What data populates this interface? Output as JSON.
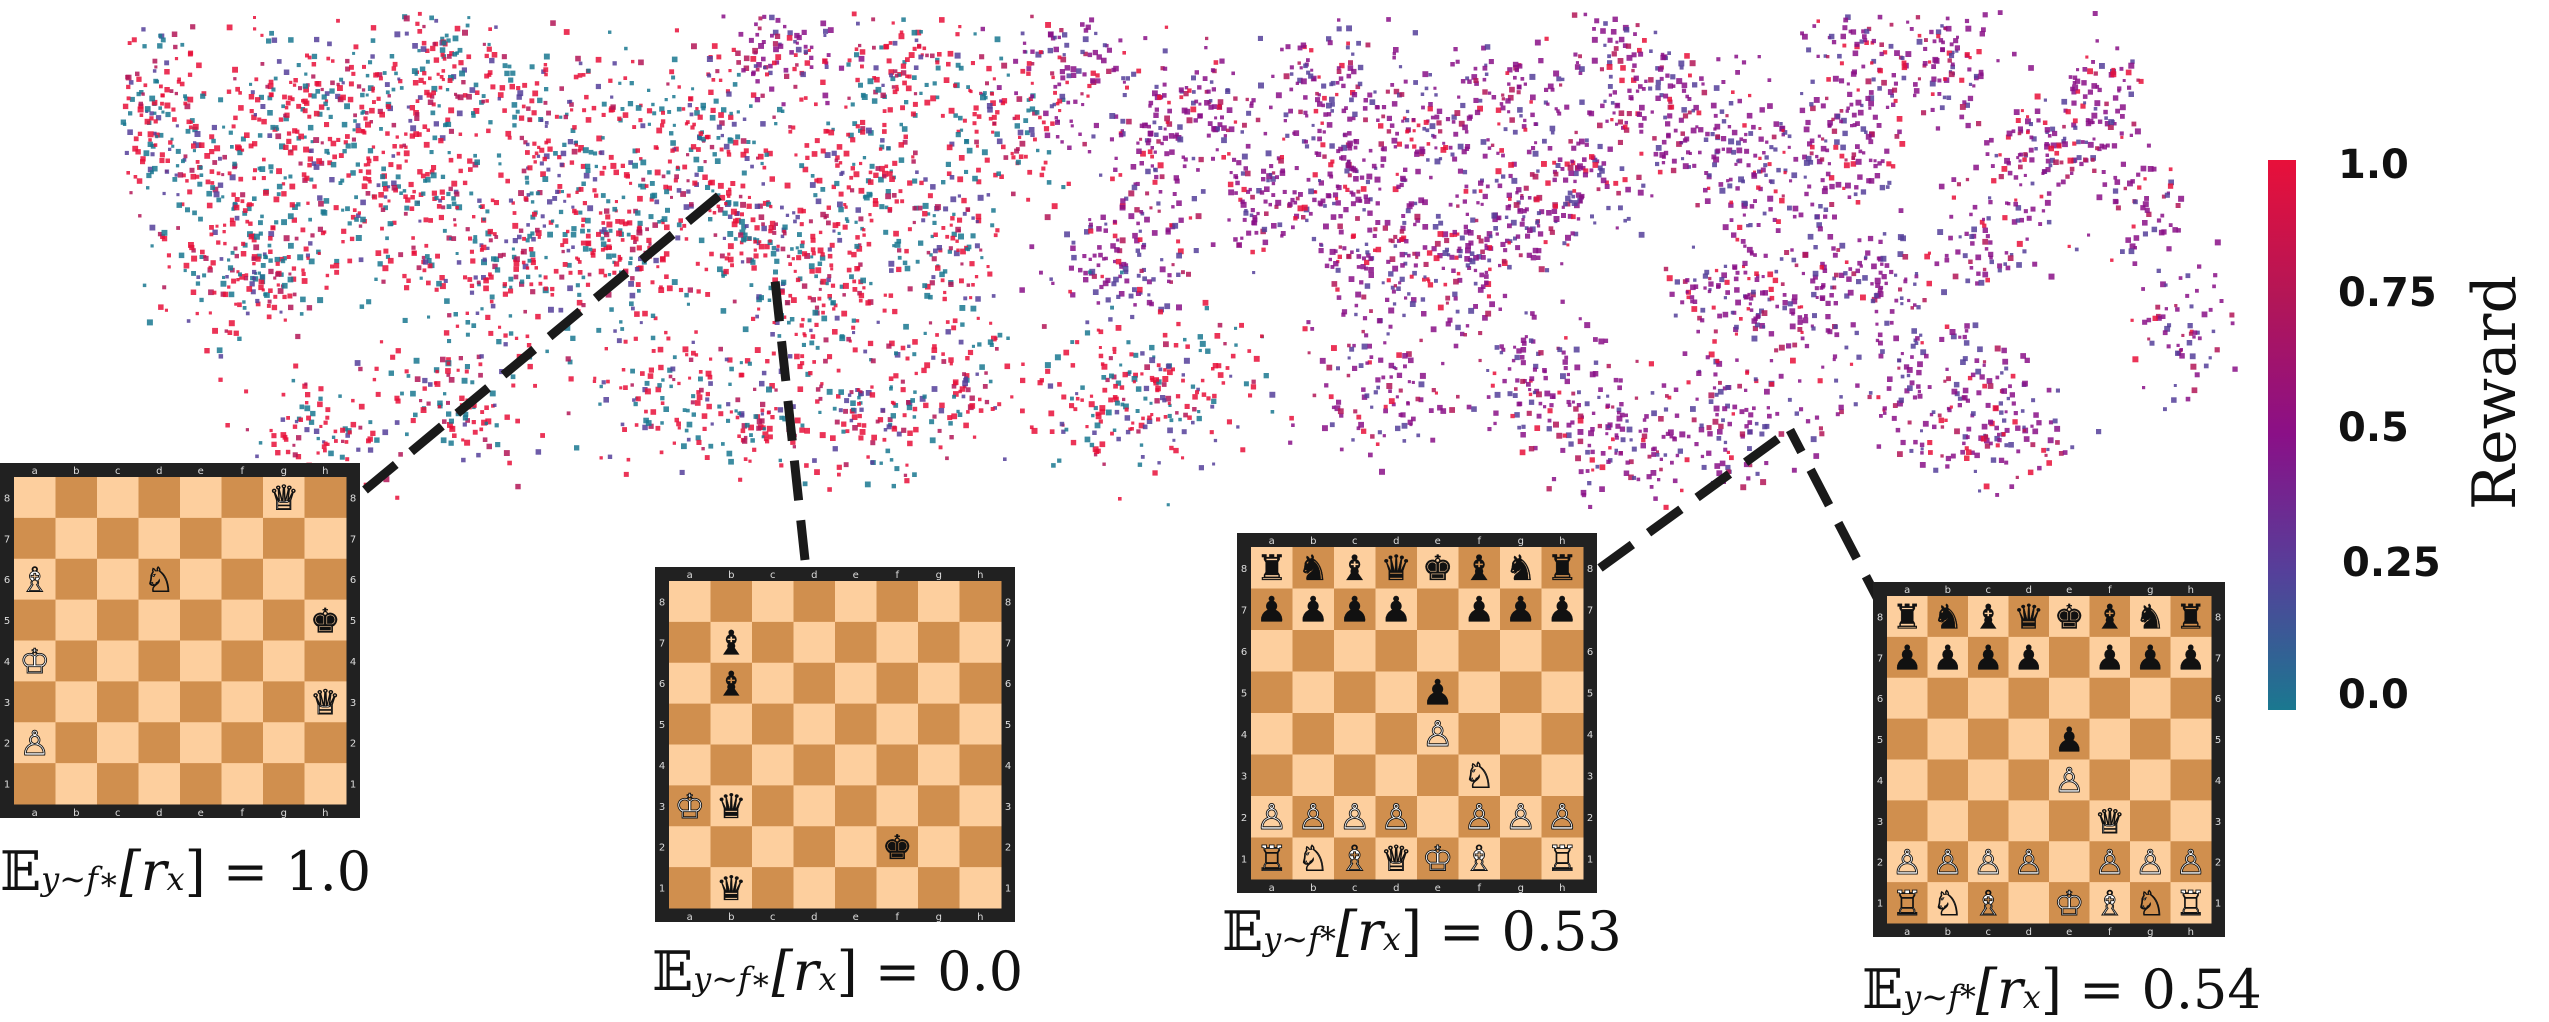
{
  "colorbar": {
    "label": "Reward",
    "ticks": [
      "1.0",
      "0.75",
      "0.5",
      "0.25",
      "0.0"
    ],
    "tick_values": [
      1.0,
      0.75,
      0.5,
      0.25,
      0.0
    ],
    "colors": [
      "#e8103a",
      "#b31657",
      "#8a1087",
      "#55409a",
      "#1a7890"
    ]
  },
  "board_files": [
    "a",
    "b",
    "c",
    "d",
    "e",
    "f",
    "g",
    "h"
  ],
  "board_ranks": [
    "8",
    "7",
    "6",
    "5",
    "4",
    "3",
    "2",
    "1"
  ],
  "boards": [
    {
      "caption": {
        "prefix": "𝔼",
        "sub": "y∼f∗",
        "body": "[r",
        "body_sub": "x",
        "tail": "] = 1.0"
      },
      "pieces": [
        {
          "sq": "g8",
          "p": "♕",
          "side": "white"
        },
        {
          "sq": "a6",
          "p": "♗",
          "side": "white"
        },
        {
          "sq": "d6",
          "p": "♘",
          "side": "white"
        },
        {
          "sq": "h5",
          "p": "♚",
          "side": "black"
        },
        {
          "sq": "a4",
          "p": "♔",
          "side": "white"
        },
        {
          "sq": "h3",
          "p": "♕",
          "side": "white"
        },
        {
          "sq": "a2",
          "p": "♙",
          "side": "white"
        }
      ]
    },
    {
      "caption": {
        "prefix": "𝔼",
        "sub": "y∼f∗",
        "body": "[r",
        "body_sub": "x",
        "tail": "] = 0.0"
      },
      "pieces": [
        {
          "sq": "b7",
          "p": "♝",
          "side": "black"
        },
        {
          "sq": "b6",
          "p": "♝",
          "side": "black"
        },
        {
          "sq": "a3",
          "p": "♔",
          "side": "white"
        },
        {
          "sq": "b3",
          "p": "♛",
          "side": "black"
        },
        {
          "sq": "f2",
          "p": "♚",
          "side": "black"
        },
        {
          "sq": "b1",
          "p": "♛",
          "side": "black"
        }
      ]
    },
    {
      "caption": {
        "prefix": "𝔼",
        "sub": "y∼f*",
        "body": "[r",
        "body_sub": "x",
        "tail": "] = 0.53"
      },
      "pieces": [
        {
          "sq": "a8",
          "p": "♜",
          "side": "black"
        },
        {
          "sq": "b8",
          "p": "♞",
          "side": "black"
        },
        {
          "sq": "c8",
          "p": "♝",
          "side": "black"
        },
        {
          "sq": "d8",
          "p": "♛",
          "side": "black"
        },
        {
          "sq": "e8",
          "p": "♚",
          "side": "black"
        },
        {
          "sq": "f8",
          "p": "♝",
          "side": "black"
        },
        {
          "sq": "g8",
          "p": "♞",
          "side": "black"
        },
        {
          "sq": "h8",
          "p": "♜",
          "side": "black"
        },
        {
          "sq": "a7",
          "p": "♟",
          "side": "black"
        },
        {
          "sq": "b7",
          "p": "♟",
          "side": "black"
        },
        {
          "sq": "c7",
          "p": "♟",
          "side": "black"
        },
        {
          "sq": "d7",
          "p": "♟",
          "side": "black"
        },
        {
          "sq": "f7",
          "p": "♟",
          "side": "black"
        },
        {
          "sq": "g7",
          "p": "♟",
          "side": "black"
        },
        {
          "sq": "h7",
          "p": "♟",
          "side": "black"
        },
        {
          "sq": "e5",
          "p": "♟",
          "side": "black"
        },
        {
          "sq": "e4",
          "p": "♙",
          "side": "white"
        },
        {
          "sq": "f3",
          "p": "♘",
          "side": "white"
        },
        {
          "sq": "a2",
          "p": "♙",
          "side": "white"
        },
        {
          "sq": "b2",
          "p": "♙",
          "side": "white"
        },
        {
          "sq": "c2",
          "p": "♙",
          "side": "white"
        },
        {
          "sq": "d2",
          "p": "♙",
          "side": "white"
        },
        {
          "sq": "f2",
          "p": "♙",
          "side": "white"
        },
        {
          "sq": "g2",
          "p": "♙",
          "side": "white"
        },
        {
          "sq": "h2",
          "p": "♙",
          "side": "white"
        },
        {
          "sq": "a1",
          "p": "♖",
          "side": "white"
        },
        {
          "sq": "b1",
          "p": "♘",
          "side": "white"
        },
        {
          "sq": "c1",
          "p": "♗",
          "side": "white"
        },
        {
          "sq": "d1",
          "p": "♕",
          "side": "white"
        },
        {
          "sq": "e1",
          "p": "♔",
          "side": "white"
        },
        {
          "sq": "f1",
          "p": "♗",
          "side": "white"
        },
        {
          "sq": "h1",
          "p": "♖",
          "side": "white"
        }
      ]
    },
    {
      "caption": {
        "prefix": "𝔼",
        "sub": "y∼f*",
        "body": "[r",
        "body_sub": "x",
        "tail": "] = 0.54"
      },
      "pieces": [
        {
          "sq": "a8",
          "p": "♜",
          "side": "black"
        },
        {
          "sq": "b8",
          "p": "♞",
          "side": "black"
        },
        {
          "sq": "c8",
          "p": "♝",
          "side": "black"
        },
        {
          "sq": "d8",
          "p": "♛",
          "side": "black"
        },
        {
          "sq": "e8",
          "p": "♚",
          "side": "black"
        },
        {
          "sq": "f8",
          "p": "♝",
          "side": "black"
        },
        {
          "sq": "g8",
          "p": "♞",
          "side": "black"
        },
        {
          "sq": "h8",
          "p": "♜",
          "side": "black"
        },
        {
          "sq": "a7",
          "p": "♟",
          "side": "black"
        },
        {
          "sq": "b7",
          "p": "♟",
          "side": "black"
        },
        {
          "sq": "c7",
          "p": "♟",
          "side": "black"
        },
        {
          "sq": "d7",
          "p": "♟",
          "side": "black"
        },
        {
          "sq": "f7",
          "p": "♟",
          "side": "black"
        },
        {
          "sq": "g7",
          "p": "♟",
          "side": "black"
        },
        {
          "sq": "h7",
          "p": "♟",
          "side": "black"
        },
        {
          "sq": "e5",
          "p": "♟",
          "side": "black"
        },
        {
          "sq": "e4",
          "p": "♙",
          "side": "white"
        },
        {
          "sq": "f3",
          "p": "♕",
          "side": "white"
        },
        {
          "sq": "a2",
          "p": "♙",
          "side": "white"
        },
        {
          "sq": "b2",
          "p": "♙",
          "side": "white"
        },
        {
          "sq": "c2",
          "p": "♙",
          "side": "white"
        },
        {
          "sq": "d2",
          "p": "♙",
          "side": "white"
        },
        {
          "sq": "f2",
          "p": "♙",
          "side": "white"
        },
        {
          "sq": "g2",
          "p": "♙",
          "side": "white"
        },
        {
          "sq": "h2",
          "p": "♙",
          "side": "white"
        },
        {
          "sq": "a1",
          "p": "♖",
          "side": "white"
        },
        {
          "sq": "b1",
          "p": "♘",
          "side": "white"
        },
        {
          "sq": "c1",
          "p": "♗",
          "side": "white"
        },
        {
          "sq": "e1",
          "p": "♔",
          "side": "white"
        },
        {
          "sq": "f1",
          "p": "♗",
          "side": "white"
        },
        {
          "sq": "g1",
          "p": "♘",
          "side": "white"
        },
        {
          "sq": "h1",
          "p": "♖",
          "side": "white"
        }
      ]
    }
  ]
}
